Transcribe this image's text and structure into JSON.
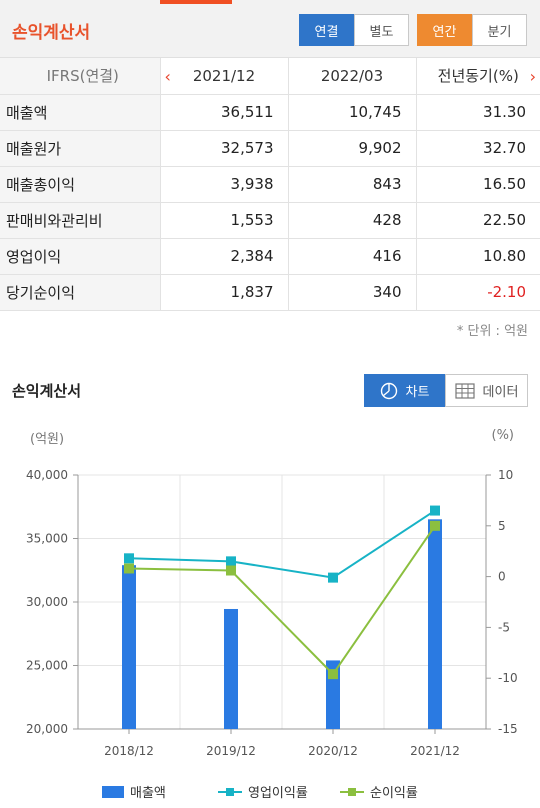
{
  "header": {
    "title": "손익계산서",
    "consolidation_options": [
      "연결",
      "별도"
    ],
    "consolidation_selected": "연결",
    "period_options": [
      "연간",
      "분기"
    ],
    "period_selected": "연간"
  },
  "table": {
    "label_header": "IFRS(연결)",
    "columns": [
      "2021/12",
      "2022/03",
      "전년동기(%)"
    ],
    "rows": [
      {
        "label": "매출액",
        "values": [
          "36,511",
          "10,745",
          "31.30"
        ]
      },
      {
        "label": "매출원가",
        "values": [
          "32,573",
          "9,902",
          "32.70"
        ]
      },
      {
        "label": "매출총이익",
        "values": [
          "3,938",
          "843",
          "16.50"
        ]
      },
      {
        "label": "판매비와관리비",
        "values": [
          "1,553",
          "428",
          "22.50"
        ]
      },
      {
        "label": "영업이익",
        "values": [
          "2,384",
          "416",
          "10.80"
        ]
      },
      {
        "label": "당기순이익",
        "values": [
          "1,837",
          "340",
          "-2.10"
        ]
      }
    ],
    "unit_note": "* 단위 : 억원"
  },
  "chart_section": {
    "title": "손익계산서",
    "chart_button": "차트",
    "data_button": "데이터",
    "left_unit": "(억원)",
    "right_unit": "(%)"
  },
  "colors": {
    "bar": "#2a7ae2",
    "operating_margin": "#17b3c6",
    "net_margin": "#8bbf3f",
    "accent_red": "#e8532c",
    "selected_blue": "#2f75c9",
    "selected_orange": "#ee8a30"
  },
  "chart_data": {
    "type": "bar",
    "categories": [
      "2018/12",
      "2019/12",
      "2020/12",
      "2021/12"
    ],
    "series": [
      {
        "name": "매출액",
        "type": "bar",
        "axis": "left",
        "values": [
          32900,
          29450,
          25400,
          36511
        ]
      },
      {
        "name": "영업이익률",
        "type": "line",
        "axis": "right",
        "values": [
          1.8,
          1.5,
          -0.1,
          6.5
        ]
      },
      {
        "name": "순이익률",
        "type": "line",
        "axis": "right",
        "values": [
          0.8,
          0.6,
          -9.6,
          5.0
        ]
      }
    ],
    "y_left": {
      "min": 20000,
      "max": 40000,
      "ticks": [
        "20,000",
        "25,000",
        "30,000",
        "35,000",
        "40,000"
      ]
    },
    "y_right": {
      "min": -15,
      "max": 10,
      "ticks": [
        "-15",
        "-10",
        "-5",
        "0",
        "5",
        "10"
      ]
    },
    "grid": true,
    "legend": "bottom"
  }
}
